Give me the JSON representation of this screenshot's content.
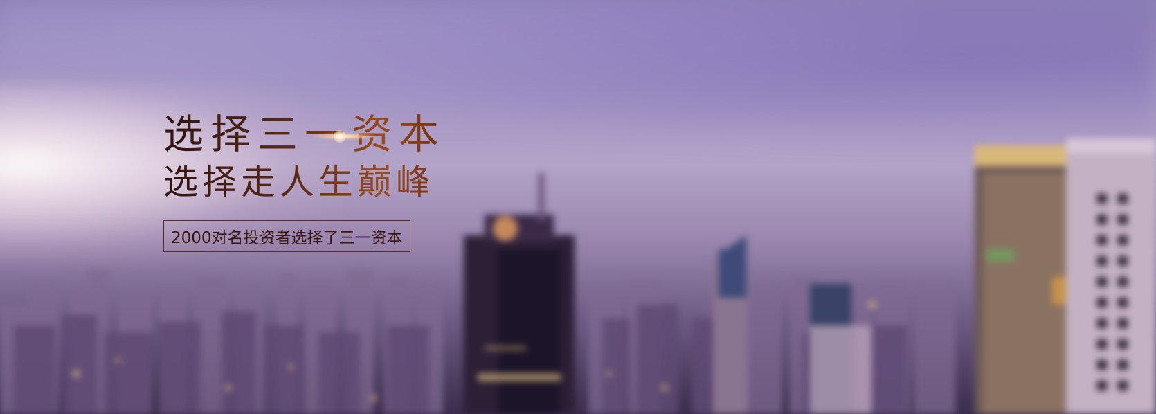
{
  "banner": {
    "headline_line1": "选择三一资本",
    "headline_line2": "选择走人生巅峰",
    "tagline": "2000对名投资者选择了三一资本"
  }
}
